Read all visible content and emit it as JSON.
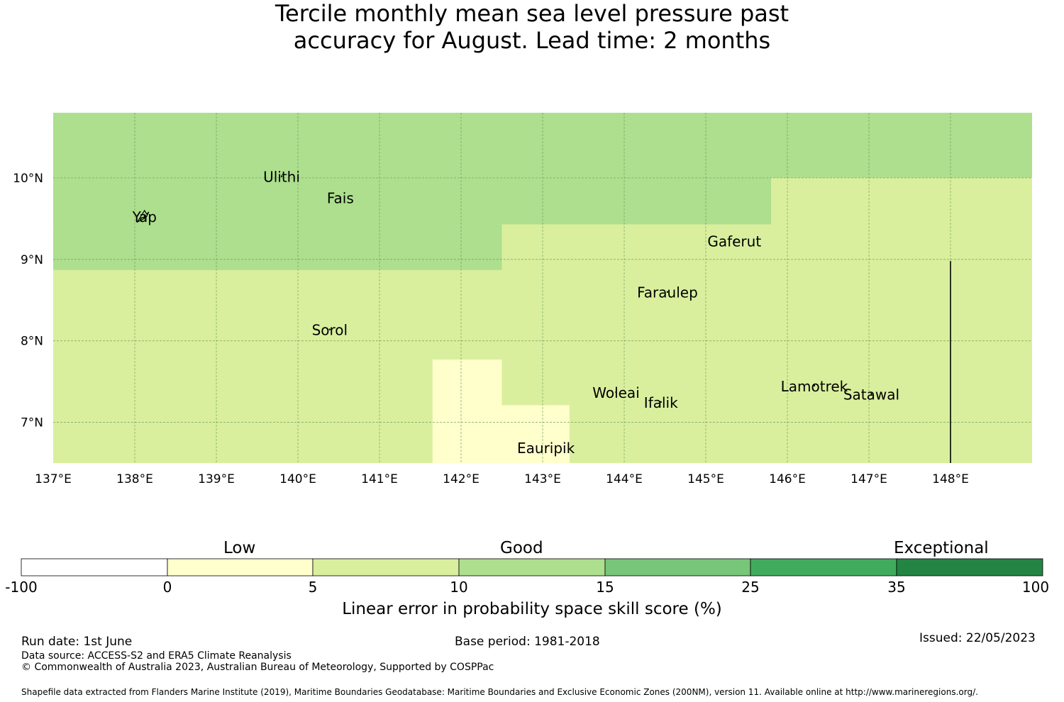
{
  "title": {
    "line1": "Tercile monthly mean sea level pressure past",
    "line2": "accuracy for August. Lead time: 2 months"
  },
  "map": {
    "lon_range": [
      137,
      149
    ],
    "lat_range": [
      6.5,
      10.8
    ],
    "x_ticks": [
      "137°E",
      "138°E",
      "139°E",
      "140°E",
      "141°E",
      "142°E",
      "143°E",
      "144°E",
      "145°E",
      "146°E",
      "147°E",
      "148°E"
    ],
    "y_ticks": [
      "10°N",
      "9°N",
      "8°N",
      "7°N"
    ],
    "gridlines": true,
    "skill_regions": [
      {
        "category": "10-15",
        "color": "#addf8e",
        "lon": [
          137,
          149
        ],
        "lat": [
          10.0,
          10.8
        ]
      },
      {
        "category": "10-15",
        "color": "#addf8e",
        "lon": [
          137,
          145.8
        ],
        "lat": [
          9.43,
          10.0
        ]
      },
      {
        "category": "10-15",
        "color": "#addf8e",
        "lon": [
          137,
          142.5
        ],
        "lat": [
          8.87,
          9.43
        ]
      },
      {
        "category": "0-5",
        "color": "#ffffcc",
        "lon": [
          141.65,
          142.5
        ],
        "lat": [
          6.5,
          7.77
        ]
      },
      {
        "category": "0-5",
        "color": "#ffffcc",
        "lon": [
          142.5,
          143.33
        ],
        "lat": [
          6.5,
          7.21
        ]
      }
    ],
    "background_color": "#d9ef9e",
    "boundary_line": {
      "lon": 148.0,
      "lat": [
        6.5,
        8.98
      ]
    },
    "places": [
      {
        "name": "Ulithi",
        "lon": 139.8,
        "lat": 10.02
      },
      {
        "name": "Fais",
        "lon": 140.52,
        "lat": 9.76
      },
      {
        "name": "Yap",
        "lon": 138.12,
        "lat": 9.53
      },
      {
        "name": "Gaferut",
        "lon": 145.35,
        "lat": 9.23
      },
      {
        "name": "Faraulep",
        "lon": 144.53,
        "lat": 8.6
      },
      {
        "name": "Sorol",
        "lon": 140.39,
        "lat": 8.14
      },
      {
        "name": "Woleai",
        "lon": 143.9,
        "lat": 7.37
      },
      {
        "name": "Ifalik",
        "lon": 144.45,
        "lat": 7.25
      },
      {
        "name": "Lamotrek",
        "lon": 146.33,
        "lat": 7.45
      },
      {
        "name": "Satawal",
        "lon": 147.03,
        "lat": 7.35
      },
      {
        "name": "Eauripik",
        "lon": 143.04,
        "lat": 6.69
      }
    ]
  },
  "colorbar": {
    "categories": [
      "Low",
      "Good",
      "Exceptional"
    ],
    "ticks": [
      "-100",
      "0",
      "5",
      "10",
      "15",
      "25",
      "35",
      "100"
    ],
    "colors": [
      "#ffffff",
      "#ffffcc",
      "#d9ef9e",
      "#addf8e",
      "#78c679",
      "#41ab5d",
      "#238443"
    ],
    "label": "Linear error in probability space skill score (%)"
  },
  "footer": {
    "run_date": "Run date: 1st June",
    "base_period": "Base period: 1981-2018",
    "issued": "Issued: 22/05/2023",
    "data_source": "Data source: ACCESS-S2 and ERA5 Climate Reanalysis",
    "copyright": "© Commonwealth of Australia 2023, Australian Bureau of Meteorology, Supported by COSPPac",
    "shapefile": "Shapefile data extracted from Flanders Marine Institute (2019), Maritime Boundaries Geodatabase: Maritime Boundaries and Exclusive Economic Zones (200NM), version 11. Available online at http://www.marineregions.org/."
  }
}
